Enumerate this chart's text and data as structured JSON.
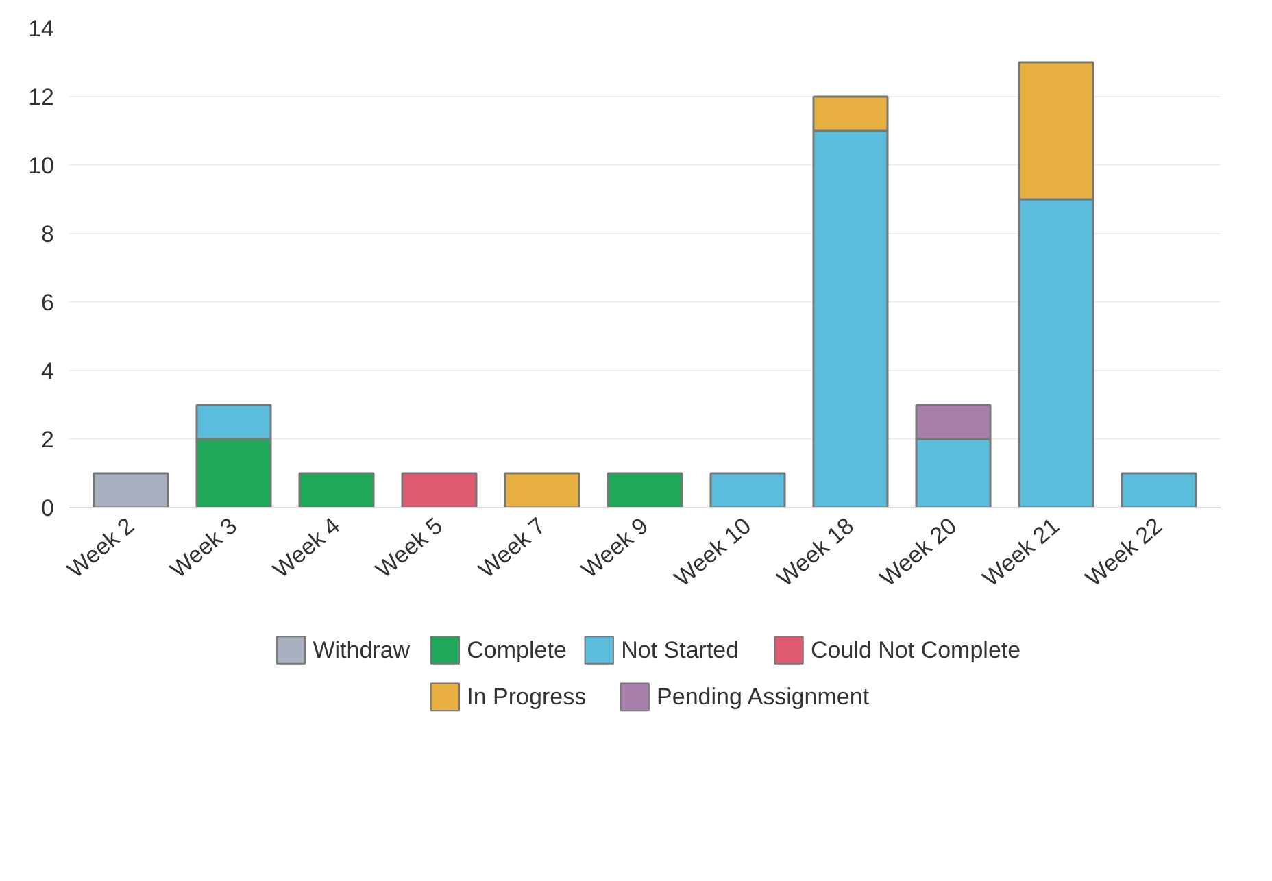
{
  "chart_data": {
    "type": "bar",
    "stacked": true,
    "categories": [
      "Week 2",
      "Week 3",
      "Week 4",
      "Week 5",
      "Week 7",
      "Week 9",
      "Week 10",
      "Week 18",
      "Week 20",
      "Week 21",
      "Week 22"
    ],
    "series": [
      {
        "name": "Withdraw",
        "color": "#a9b0bf",
        "values": [
          1,
          0,
          0,
          0,
          0,
          0,
          0,
          0,
          0,
          0,
          0
        ]
      },
      {
        "name": "Complete",
        "color": "#20a95a",
        "values": [
          0,
          2,
          1,
          0,
          0,
          1,
          0,
          0,
          0,
          0,
          0
        ]
      },
      {
        "name": "Not Started",
        "color": "#5bbcdc",
        "values": [
          0,
          1,
          0,
          0,
          0,
          0,
          1,
          11,
          2,
          9,
          1
        ]
      },
      {
        "name": "Could Not Complete",
        "color": "#e05a72",
        "values": [
          0,
          0,
          0,
          1,
          0,
          0,
          0,
          0,
          0,
          0,
          0
        ]
      },
      {
        "name": "In Progress",
        "color": "#e8b040",
        "values": [
          0,
          0,
          0,
          0,
          1,
          0,
          0,
          1,
          0,
          4,
          0
        ]
      },
      {
        "name": "Pending Assignment",
        "color": "#a67fab",
        "values": [
          0,
          0,
          0,
          0,
          0,
          0,
          0,
          0,
          1,
          0,
          0
        ]
      }
    ],
    "ylim": [
      0,
      14
    ],
    "yticks": [
      0,
      2,
      4,
      6,
      8,
      10,
      12,
      14
    ],
    "grid": "y",
    "legend": "bottom"
  }
}
